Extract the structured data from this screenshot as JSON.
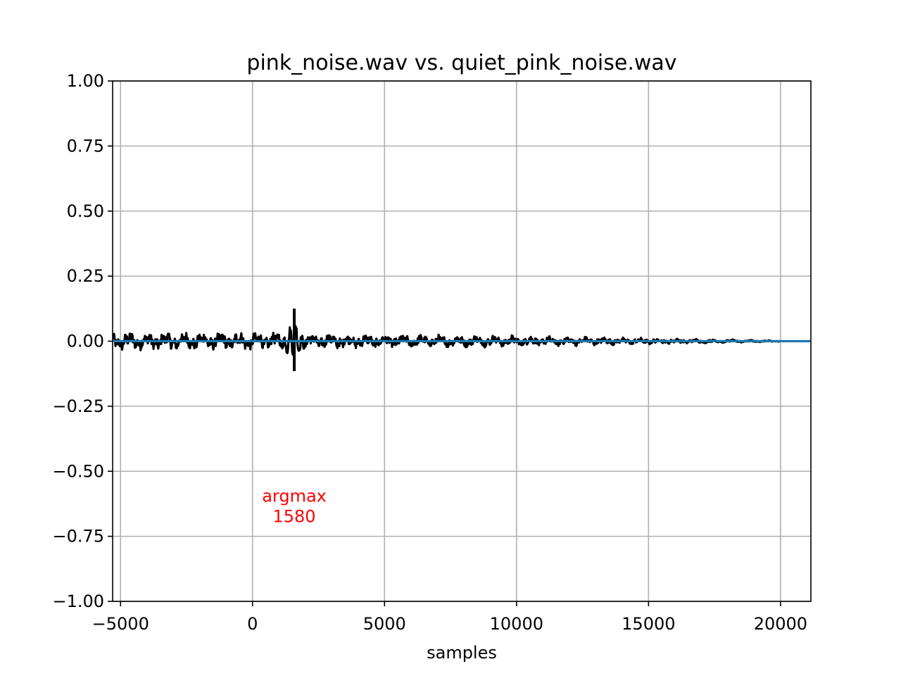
{
  "chart_data": {
    "type": "line",
    "title": "pink_noise.wav vs. quiet_pink_noise.wav",
    "xlabel": "samples",
    "ylabel": "",
    "xlim": [
      -5300,
      21150
    ],
    "ylim": [
      -1.0,
      1.0
    ],
    "grid": true,
    "xticks": [
      -5000,
      0,
      5000,
      10000,
      15000,
      20000
    ],
    "xtick_labels": [
      "−5000",
      "0",
      "5000",
      "10000",
      "15000",
      "20000"
    ],
    "yticks": [
      1.0,
      0.75,
      0.5,
      0.25,
      0.0,
      -0.25,
      -0.5,
      -0.75,
      -1.0
    ],
    "ytick_labels": [
      "1.00",
      "0.75",
      "0.50",
      "0.25",
      "0.00",
      "−0.25",
      "−0.50",
      "−0.75",
      "−1.00"
    ],
    "series": [
      {
        "color": "#000000",
        "style": "noise-envelope",
        "x_range": [
          -5300,
          20000
        ],
        "envelope": [
          {
            "x": -5300,
            "amp": 0.03
          },
          {
            "x": 0,
            "amp": 0.03
          },
          {
            "x": 5000,
            "amp": 0.022
          },
          {
            "x": 10000,
            "amp": 0.018
          },
          {
            "x": 15000,
            "amp": 0.01
          },
          {
            "x": 20000,
            "amp": 0.002
          }
        ],
        "peak": {
          "x": 1580,
          "y_max": 0.125,
          "y_min": -0.115
        }
      },
      {
        "color": "#1f77b4",
        "style": "line",
        "x": [
          -5300,
          21150
        ],
        "y": [
          0.0,
          0.0
        ]
      }
    ],
    "annotations": [
      {
        "text_line1": "argmax",
        "text_line2": "1580",
        "x": 1580,
        "y": -0.62,
        "color": "#ff0000"
      }
    ]
  }
}
